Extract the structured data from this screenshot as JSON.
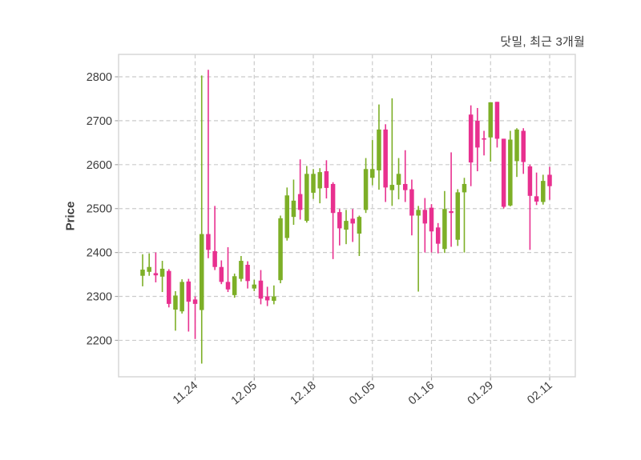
{
  "title": "닷밀, 최근 3개월",
  "ylabel": "Price",
  "colors": {
    "up": "#7daf27",
    "down": "#e8308f",
    "grid": "#cbcbcb",
    "border": "#d4d4d4",
    "text": "#3d3d3d",
    "background": "#ffffff"
  },
  "chart_data": {
    "type": "candlestick",
    "title": "닷밀, 최근 3개월",
    "ylabel": "Price",
    "xlabel": "",
    "grid": true,
    "ylim": [
      2117,
      2851
    ],
    "yticks": [
      2200,
      2300,
      2400,
      2500,
      2600,
      2700,
      2800
    ],
    "xtick_labels": [
      "11.24",
      "12.05",
      "12.18",
      "01.05",
      "01.16",
      "01.29",
      "02.11"
    ],
    "xtick_indices": [
      8,
      17,
      26,
      35,
      44,
      53,
      62
    ],
    "up_color": "#7daf27",
    "down_color": "#e8308f",
    "candles_format": [
      "open",
      "high",
      "low",
      "close"
    ],
    "candles": [
      [
        2347,
        2396,
        2323,
        2361
      ],
      [
        2356,
        2398,
        2347,
        2367
      ],
      [
        2353,
        2400,
        2332,
        2348
      ],
      [
        2345,
        2381,
        2310,
        2363
      ],
      [
        2358,
        2362,
        2275,
        2283
      ],
      [
        2270,
        2312,
        2222,
        2302
      ],
      [
        2266,
        2339,
        2261,
        2333
      ],
      [
        2334,
        2340,
        2220,
        2288
      ],
      [
        2293,
        2300,
        2203,
        2283
      ],
      [
        2269,
        2803,
        2147,
        2442
      ],
      [
        2442,
        2816,
        2387,
        2406
      ],
      [
        2403,
        2506,
        2360,
        2367
      ],
      [
        2367,
        2382,
        2328,
        2333
      ],
      [
        2333,
        2412,
        2310,
        2316
      ],
      [
        2303,
        2352,
        2297,
        2346
      ],
      [
        2340,
        2392,
        2334,
        2381
      ],
      [
        2372,
        2380,
        2318,
        2335
      ],
      [
        2318,
        2338,
        2312,
        2327
      ],
      [
        2336,
        2360,
        2282,
        2295
      ],
      [
        2300,
        2322,
        2278,
        2291
      ],
      [
        2290,
        2325,
        2282,
        2300
      ],
      [
        2337,
        2484,
        2330,
        2478
      ],
      [
        2433,
        2548,
        2427,
        2530
      ],
      [
        2481,
        2566,
        2463,
        2518
      ],
      [
        2533,
        2612,
        2475,
        2497
      ],
      [
        2472,
        2597,
        2468,
        2579
      ],
      [
        2536,
        2590,
        2522,
        2579
      ],
      [
        2546,
        2592,
        2512,
        2583
      ],
      [
        2585,
        2610,
        2523,
        2547
      ],
      [
        2556,
        2560,
        2385,
        2490
      ],
      [
        2492,
        2499,
        2416,
        2455
      ],
      [
        2452,
        2497,
        2419,
        2472
      ],
      [
        2477,
        2499,
        2424,
        2466
      ],
      [
        2443,
        2484,
        2392,
        2481
      ],
      [
        2497,
        2615,
        2490,
        2590
      ],
      [
        2570,
        2656,
        2553,
        2590
      ],
      [
        2587,
        2737,
        2543,
        2680
      ],
      [
        2680,
        2692,
        2515,
        2548
      ],
      [
        2542,
        2751,
        2506,
        2554
      ],
      [
        2554,
        2615,
        2521,
        2579
      ],
      [
        2556,
        2633,
        2515,
        2542
      ],
      [
        2544,
        2566,
        2439,
        2484
      ],
      [
        2484,
        2506,
        2311,
        2497
      ],
      [
        2497,
        2524,
        2400,
        2466
      ],
      [
        2502,
        2510,
        2400,
        2448
      ],
      [
        2457,
        2467,
        2398,
        2420
      ],
      [
        2408,
        2540,
        2399,
        2499
      ],
      [
        2494,
        2628,
        2413,
        2490
      ],
      [
        2429,
        2544,
        2415,
        2537
      ],
      [
        2537,
        2570,
        2400,
        2556
      ],
      [
        2714,
        2735,
        2551,
        2605
      ],
      [
        2700,
        2729,
        2585,
        2639
      ],
      [
        2660,
        2677,
        2621,
        2657
      ],
      [
        2662,
        2742,
        2607,
        2742
      ],
      [
        2743,
        2743,
        2639,
        2659
      ],
      [
        2659,
        2659,
        2500,
        2504
      ],
      [
        2507,
        2677,
        2505,
        2657
      ],
      [
        2608,
        2683,
        2572,
        2680
      ],
      [
        2677,
        2683,
        2579,
        2606
      ],
      [
        2596,
        2600,
        2406,
        2529
      ],
      [
        2528,
        2582,
        2508,
        2516
      ],
      [
        2515,
        2577,
        2509,
        2563
      ],
      [
        2577,
        2595,
        2520,
        2551
      ]
    ]
  }
}
